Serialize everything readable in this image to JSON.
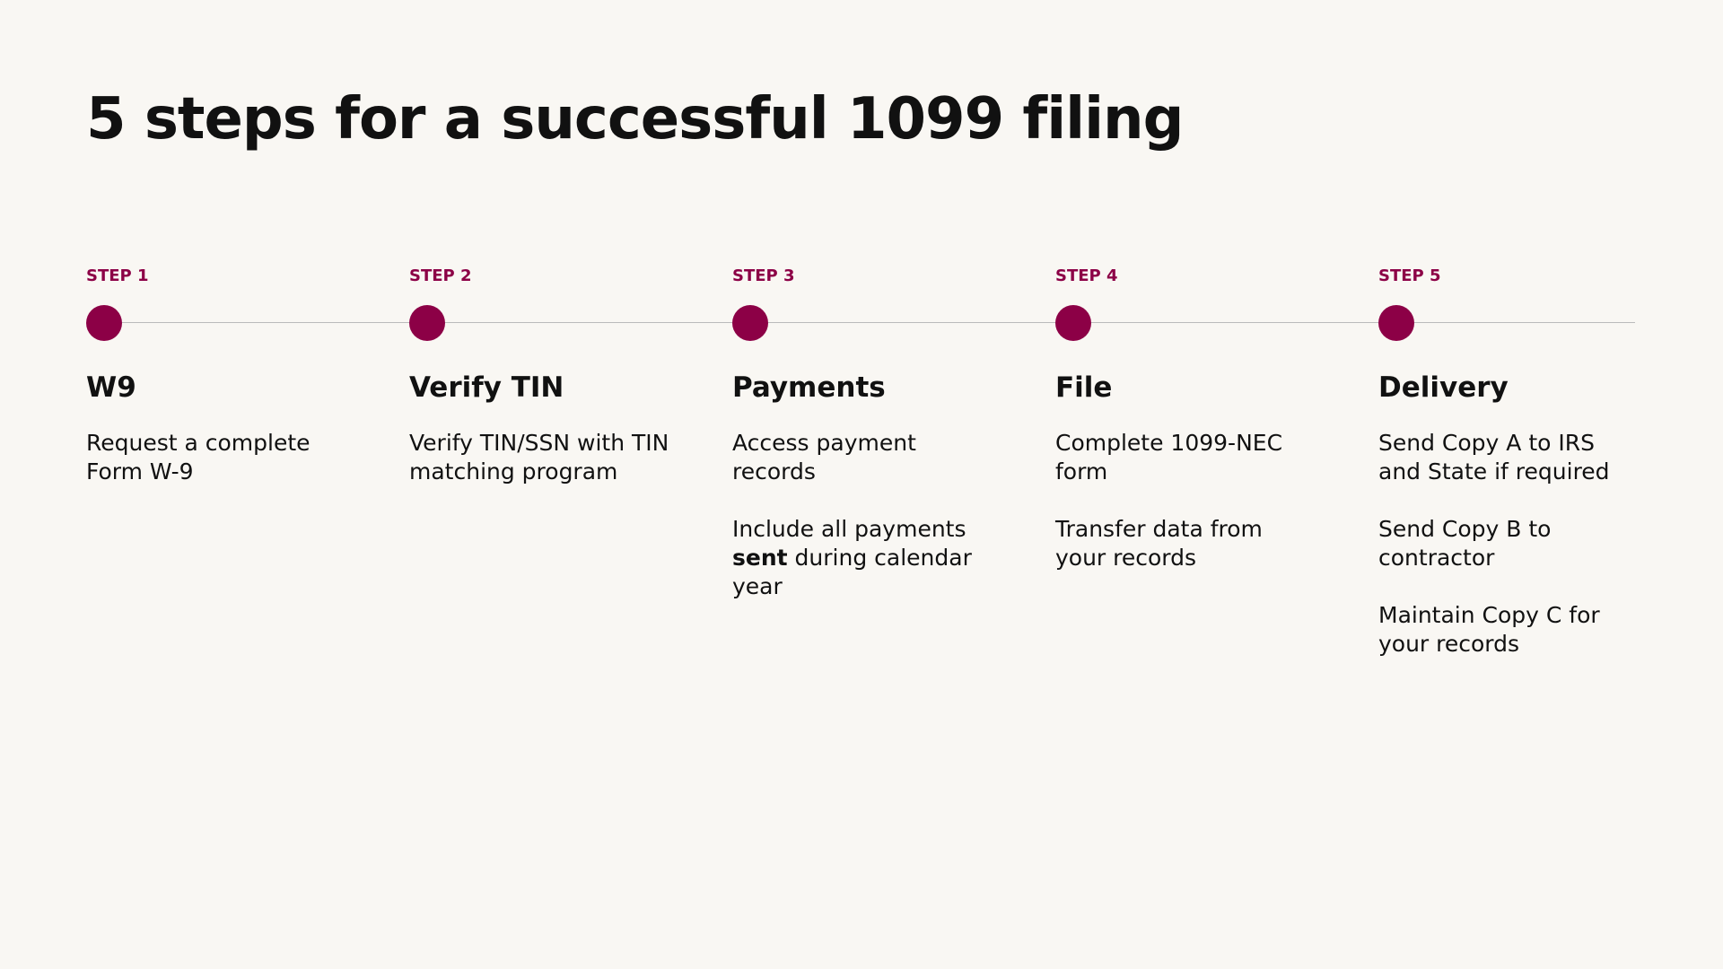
{
  "header": {
    "title": "5 steps for a successful 1099 filing"
  },
  "accent_color": "#8c0046",
  "steps": [
    {
      "label": "STEP 1",
      "title": "W9",
      "paragraphs": [
        [
          {
            "text": "Request a complete Form W-9"
          }
        ]
      ]
    },
    {
      "label": "STEP 2",
      "title": "Verify TIN",
      "paragraphs": [
        [
          {
            "text": "Verify TIN/SSN with TIN matching program"
          }
        ]
      ]
    },
    {
      "label": "STEP 3",
      "title": "Payments",
      "paragraphs": [
        [
          {
            "text": "Access payment records"
          }
        ],
        [
          {
            "text": "Include all payments "
          },
          {
            "text": "sent",
            "bold": true
          },
          {
            "text": " during calendar year"
          }
        ]
      ]
    },
    {
      "label": "STEP 4",
      "title": "File",
      "paragraphs": [
        [
          {
            "text": "Complete 1099-NEC form"
          }
        ],
        [
          {
            "text": "Transfer data from your records"
          }
        ]
      ]
    },
    {
      "label": "STEP 5",
      "title": "Delivery",
      "paragraphs": [
        [
          {
            "text": "Send Copy A to IRS and State if required"
          }
        ],
        [
          {
            "text": "Send Copy B to contractor"
          }
        ],
        [
          {
            "text": "Maintain Copy C for your records"
          }
        ]
      ]
    }
  ]
}
